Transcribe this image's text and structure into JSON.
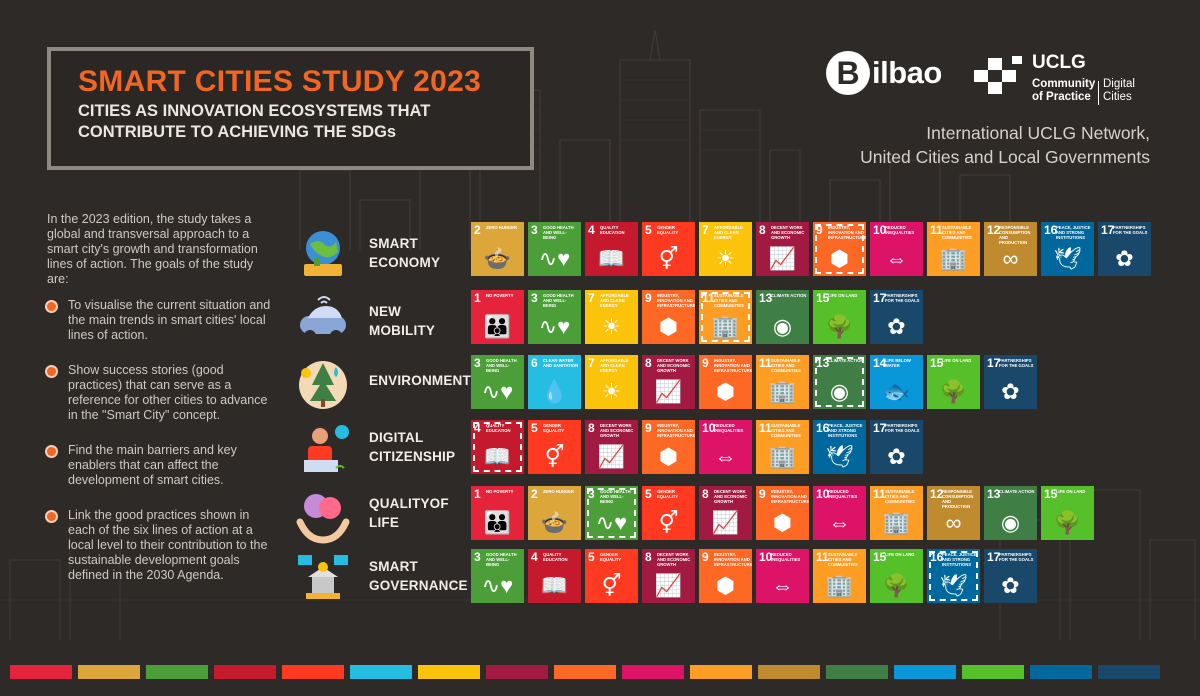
{
  "header": {
    "title": "SMART CITIES STUDY 2023",
    "subtitle": "CITIES AS INNOVATION ECOSYSTEMS THAT CONTRIBUTE TO ACHIEVING THE SDGs"
  },
  "logos": {
    "bilbao_initial": "B",
    "bilbao_rest": "ilbao",
    "uclg_name": "UCLG",
    "uclg_cop": "Community of Practice",
    "uclg_dc": "Digital Cities"
  },
  "network": {
    "line1": "International UCLG Network,",
    "line2": "United Cities and Local Governments"
  },
  "intro": "In the 2023 edition, the study takes a global and transversal approach to a smart city's growth and transformation lines of action. The goals of the study are:",
  "bullets": [
    "To visualise the current situation and the main trends in smart cities' local lines of action.",
    "Show success stories (good practices) that can serve as a reference for other cities to advance in the \"Smart City\" concept.",
    "Find the main barriers and key enablers that can affect the development of smart cities.",
    "Link the good practices shown in each of the six lines of action at a local level to their contribution to the sustainable development goals defined in the 2030 Agenda."
  ],
  "sdg_goals": {
    "1": {
      "name": "NO POVERTY",
      "color": "#e5243b",
      "icon": "family-icon"
    },
    "2": {
      "name": "ZERO HUNGER",
      "color": "#dda63a",
      "icon": "bowl-icon"
    },
    "3": {
      "name": "GOOD HEALTH AND WELL-BEING",
      "color": "#4c9f38",
      "icon": "heartbeat-icon"
    },
    "4": {
      "name": "QUALITY EDUCATION",
      "color": "#c5192d",
      "icon": "book-icon"
    },
    "5": {
      "name": "GENDER EQUALITY",
      "color": "#ff3a21",
      "icon": "gender-icon"
    },
    "6": {
      "name": "CLEAN WATER AND SANITATION",
      "color": "#26bde2",
      "icon": "water-icon"
    },
    "7": {
      "name": "AFFORDABLE AND CLEAN ENERGY",
      "color": "#fcc30b",
      "icon": "sun-icon"
    },
    "8": {
      "name": "DECENT WORK AND ECONOMIC GROWTH",
      "color": "#a21942",
      "icon": "growth-icon"
    },
    "9": {
      "name": "INDUSTRY, INNOVATION AND INFRASTRUCTURE",
      "color": "#fd6925",
      "icon": "cubes-icon"
    },
    "10": {
      "name": "REDUCED INEQUALITIES",
      "color": "#dd1367",
      "icon": "equality-icon"
    },
    "11": {
      "name": "SUSTAINABLE CITIES AND COMMUNITIES",
      "color": "#fd9d24",
      "icon": "city-icon"
    },
    "12": {
      "name": "RESPONSIBLE CONSUMPTION AND PRODUCTION",
      "color": "#bf8b2e",
      "icon": "infinity-icon"
    },
    "13": {
      "name": "CLIMATE ACTION",
      "color": "#3f7e44",
      "icon": "eye-icon"
    },
    "14": {
      "name": "LIFE BELOW WATER",
      "color": "#0a97d9",
      "icon": "fish-icon"
    },
    "15": {
      "name": "LIFE ON LAND",
      "color": "#56c02b",
      "icon": "tree-icon"
    },
    "16": {
      "name": "PEACE, JUSTICE AND STRONG INSTITUTIONS",
      "color": "#00689d",
      "icon": "dove-icon"
    },
    "17": {
      "name": "PARTNERSHIPS FOR THE GOALS",
      "color": "#19486a",
      "icon": "partnership-icon"
    }
  },
  "rows": [
    {
      "label": "SMART ECONOMY",
      "icon": "economy-globe-icon",
      "goals": [
        2,
        3,
        4,
        5,
        7,
        8,
        9,
        10,
        11,
        12,
        16,
        17
      ],
      "highlight": [
        9
      ]
    },
    {
      "label": "NEW MOBILITY",
      "icon": "car-icon",
      "goals": [
        1,
        3,
        7,
        9,
        11,
        13,
        15,
        17
      ],
      "highlight": [
        11
      ]
    },
    {
      "label": "ENVIRONMENT",
      "icon": "environment-icon",
      "goals": [
        3,
        6,
        7,
        8,
        9,
        11,
        13,
        14,
        15,
        17
      ],
      "highlight": [
        13
      ]
    },
    {
      "label": "DIGITAL CITIZENSHIP",
      "icon": "citizen-laptop-icon",
      "goals": [
        4,
        5,
        8,
        9,
        10,
        11,
        16,
        17
      ],
      "highlight": [
        4
      ]
    },
    {
      "label": "QUALITYOF LIFE",
      "icon": "hands-hearts-icon",
      "goals": [
        1,
        2,
        3,
        5,
        8,
        9,
        10,
        11,
        12,
        13,
        15
      ],
      "highlight": [
        3
      ]
    },
    {
      "label": "SMART GOVERNANCE",
      "icon": "governance-icon",
      "goals": [
        3,
        4,
        5,
        8,
        9,
        10,
        11,
        15,
        16,
        17
      ],
      "highlight": [
        16
      ]
    }
  ],
  "bottom_bar": [
    "#e5243b",
    "#dda63a",
    "#4c9f38",
    "#c5192d",
    "#ff3a21",
    "#26bde2",
    "#fcc30b",
    "#a21942",
    "#fd6925",
    "#dd1367",
    "#fd9d24",
    "#bf8b2e",
    "#3f7e44",
    "#0a97d9",
    "#56c02b",
    "#00689d",
    "#19486a"
  ]
}
